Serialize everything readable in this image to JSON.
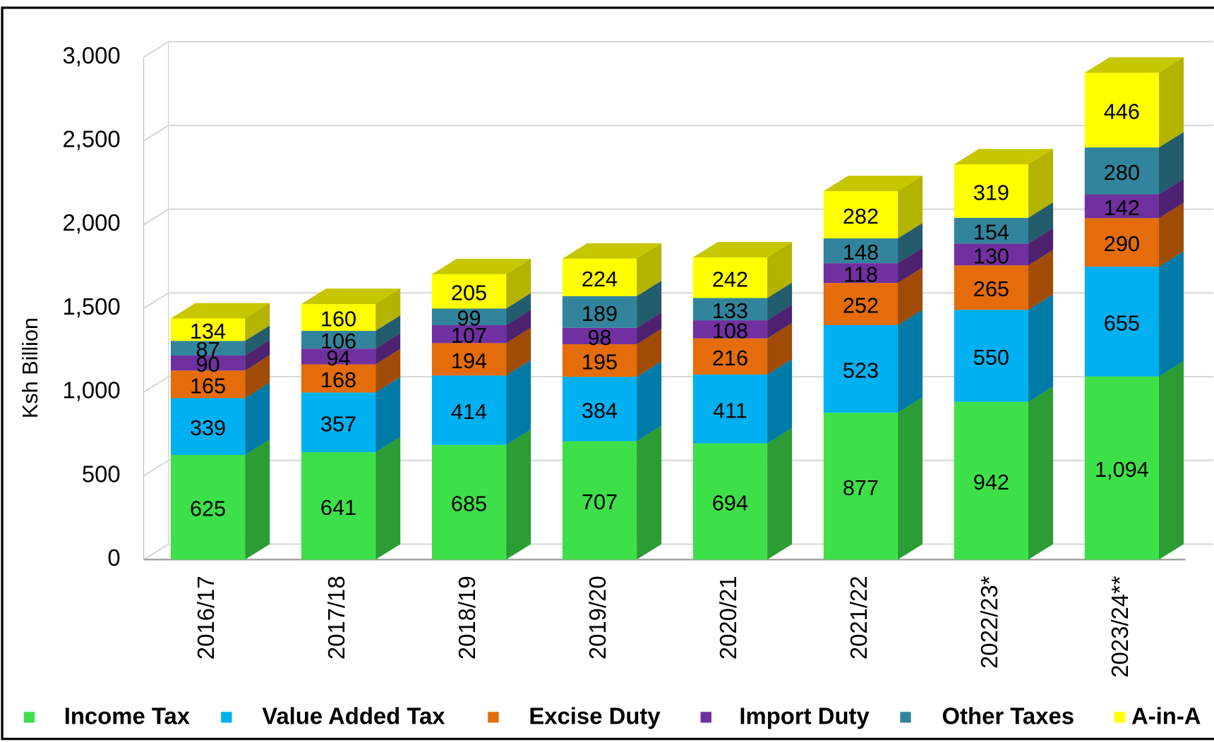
{
  "chart_data": {
    "type": "bar",
    "stacked": true,
    "y_label": "Ksh Billion",
    "categories": [
      "2016/17",
      "2017/18",
      "2018/19",
      "2019/20",
      "2020/21",
      "2021/22",
      "2022/23*",
      "2023/24**"
    ],
    "series": [
      {
        "name": "Income Tax",
        "color": "#3ee04a",
        "values": [
          625,
          641,
          685,
          707,
          694,
          877,
          942,
          1094
        ],
        "value_labels": [
          "625",
          "641",
          "685",
          "707",
          "694",
          "877",
          "942",
          "1,094"
        ]
      },
      {
        "name": "Value Added Tax",
        "color": "#00b0f0",
        "values": [
          339,
          357,
          414,
          384,
          411,
          523,
          550,
          655
        ]
      },
      {
        "name": "Excise Duty",
        "color": "#e46c0a",
        "values": [
          165,
          168,
          194,
          195,
          216,
          252,
          265,
          290
        ]
      },
      {
        "name": "Import Duty",
        "color": "#7030a0",
        "values": [
          90,
          94,
          107,
          98,
          108,
          118,
          130,
          142
        ]
      },
      {
        "name": "Other Taxes",
        "color": "#31849b",
        "values": [
          87,
          106,
          99,
          189,
          133,
          148,
          154,
          280
        ]
      },
      {
        "name": "A-in-A",
        "color": "#ffff00",
        "values": [
          134,
          160,
          205,
          224,
          242,
          282,
          319,
          446
        ]
      }
    ],
    "ylim": [
      0,
      3000
    ],
    "yticks": [
      0,
      500,
      {
        "value": 1000,
        "label": "1,000"
      },
      {
        "value": 1500,
        "label": "1,500"
      },
      {
        "value": 2000,
        "label": "2,000"
      },
      {
        "value": 2500,
        "label": "2,500"
      },
      {
        "value": 3000,
        "label": "3,000"
      }
    ],
    "grid": true,
    "legend": "bottom"
  }
}
